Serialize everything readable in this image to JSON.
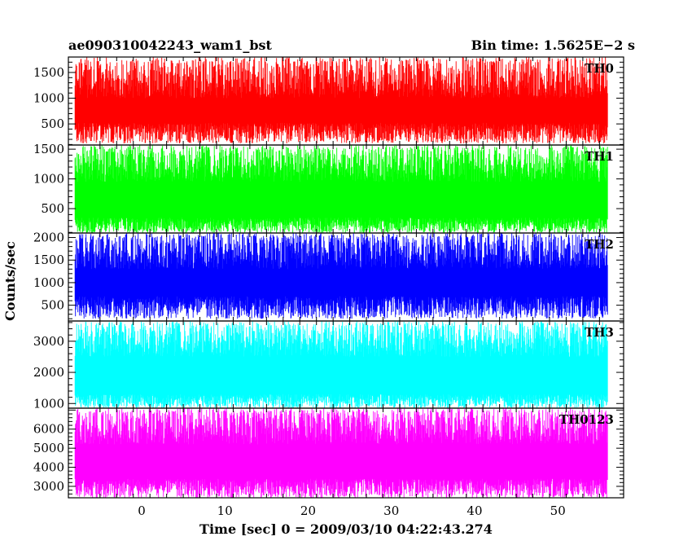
{
  "title_left": "ae090310042243_wam1_bst",
  "title_right": "Bin time: 1.5625E−2 s",
  "ylabel": "Counts/sec",
  "xlabel": "Time [sec] 0 = 2009/03/10 04:22:43.274",
  "chart_data": {
    "type": "line",
    "title": "ae090310042243_wam1_bst",
    "subtitle": "Bin time: 1.5625E−2 s",
    "xlabel": "Time [sec] 0 = 2009/03/10 04:22:43.274",
    "ylabel": "Counts/sec",
    "xlim": [
      -8.8,
      57.9
    ],
    "x_ticks": [
      0,
      10,
      20,
      30,
      40,
      50
    ],
    "data_x_range": [
      -8,
      56
    ],
    "bin_time": 0.015625,
    "grid": false,
    "panels": [
      {
        "name": "TH0",
        "color": "#ff0000",
        "ylim": [
          90,
          1800
        ],
        "y_ticks": [
          500,
          1000,
          1500
        ],
        "envelope_low": [
          120,
          520
        ],
        "envelope_high": [
          1000,
          1800
        ],
        "mean": 780
      },
      {
        "name": "TH1",
        "color": "#00ff00",
        "ylim": [
          90,
          1570
        ],
        "y_ticks": [
          500,
          1000,
          1500
        ],
        "envelope_low": [
          90,
          350
        ],
        "envelope_high": [
          950,
          1570
        ],
        "mean": 700
      },
      {
        "name": "TH2",
        "color": "#0000ff",
        "ylim": [
          150,
          2100
        ],
        "y_ticks": [
          500,
          1000,
          1500,
          2000
        ],
        "envelope_low": [
          200,
          700
        ],
        "envelope_high": [
          1300,
          2100
        ],
        "mean": 1100
      },
      {
        "name": "TH3",
        "color": "#00ffff",
        "ylim": [
          850,
          3650
        ],
        "y_ticks": [
          1000,
          2000,
          3000
        ],
        "envelope_low": [
          850,
          1300
        ],
        "envelope_high": [
          2500,
          3650
        ],
        "mean": 1900
      },
      {
        "name": "TH0123",
        "color": "#ff00ff",
        "ylim": [
          2400,
          7100
        ],
        "y_ticks": [
          3000,
          4000,
          5000,
          6000
        ],
        "envelope_low": [
          2400,
          3400
        ],
        "envelope_high": [
          5200,
          7100
        ],
        "mean": 4300
      }
    ]
  }
}
